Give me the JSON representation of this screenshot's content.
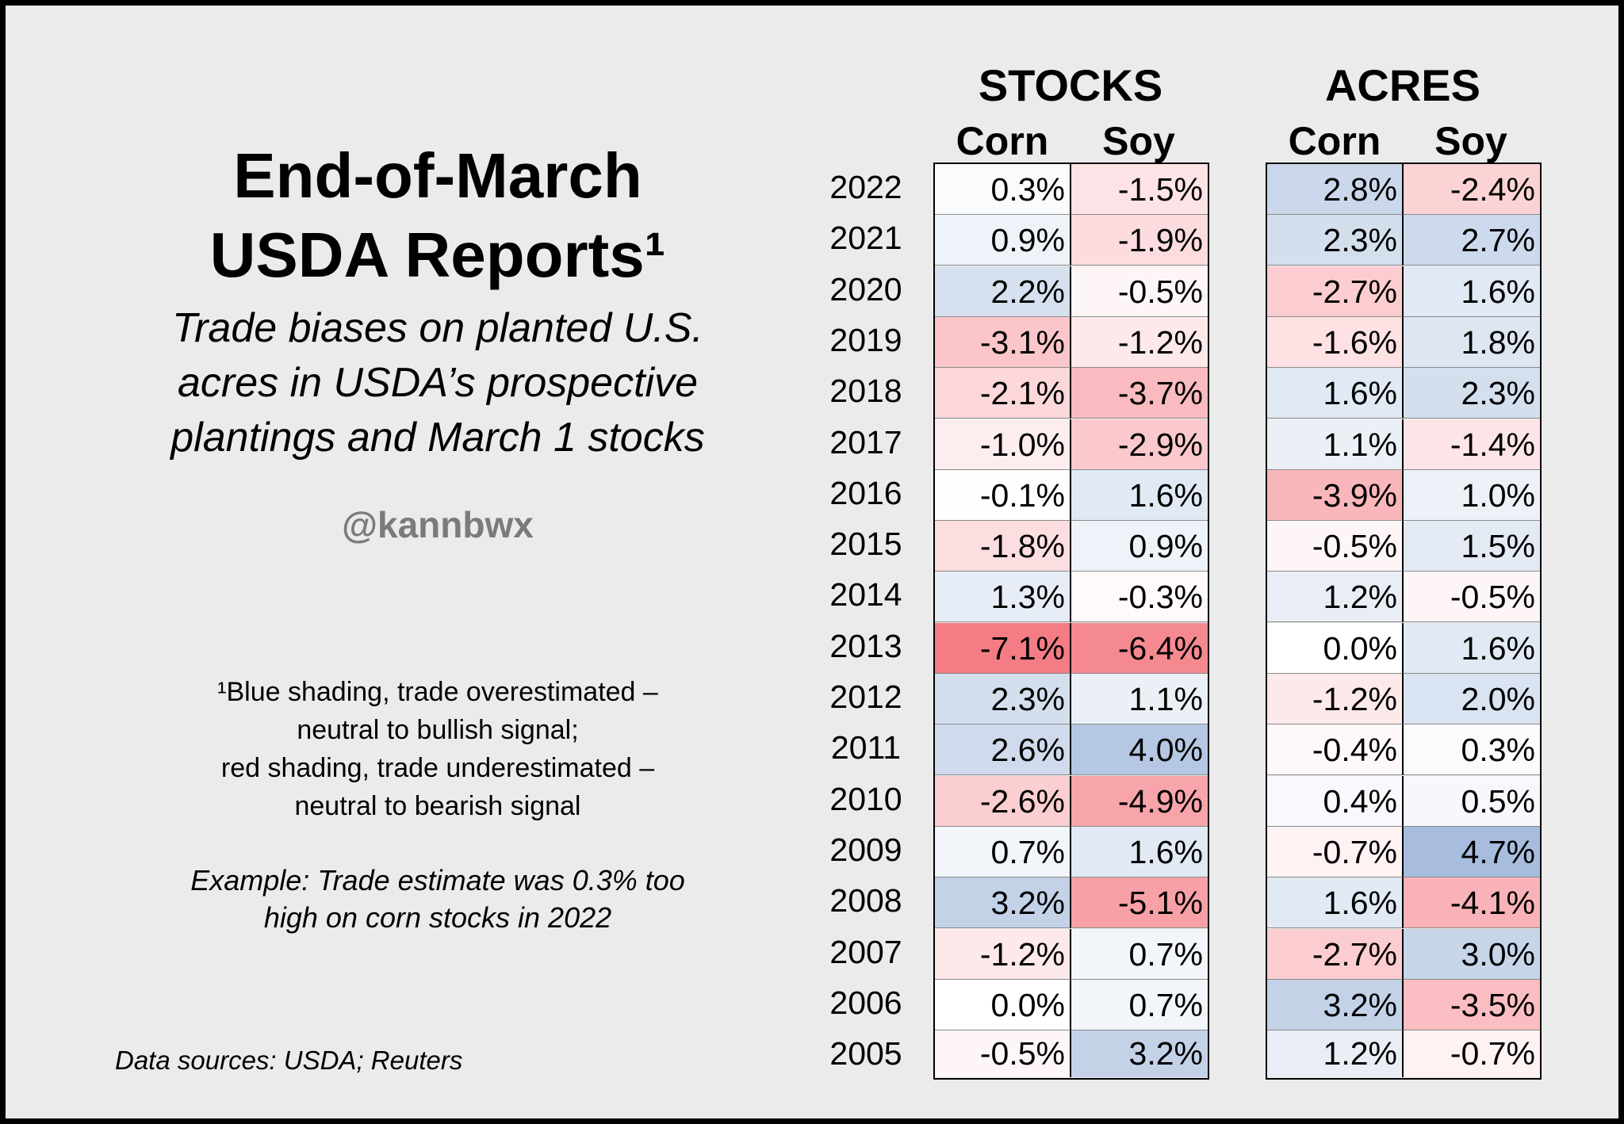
{
  "title_line1": "End-of-March",
  "title_line2": "USDA Reports¹",
  "subtitle_line1": "Trade biases on planted U.S.",
  "subtitle_line2": "acres in USDA’s prospective",
  "subtitle_line3": "plantings and March 1 stocks",
  "handle": "@kannbwx",
  "footnote_line1": "¹Blue shading, trade overestimated –",
  "footnote_line2": "neutral to bullish signal;",
  "footnote_line3": "red shading, trade underestimated –",
  "footnote_line4": "neutral to bearish signal",
  "example_line1": "Example: Trade estimate was 0.3% too",
  "example_line2": "high on corn stocks in 2022",
  "sources": "Data sources: USDA; Reuters",
  "colors": {
    "positive": "#7b9ccc",
    "negative": "#f47c84",
    "neutral": "#ffffff"
  },
  "chart_data": {
    "type": "table",
    "value_unit": "%",
    "color_scale_abs_max": 7.1,
    "years": [
      "2022",
      "2021",
      "2020",
      "2019",
      "2018",
      "2017",
      "2016",
      "2015",
      "2014",
      "2013",
      "2012",
      "2011",
      "2010",
      "2009",
      "2008",
      "2007",
      "2006",
      "2005"
    ],
    "groups": [
      {
        "name": "STOCKS",
        "columns": [
          {
            "name": "Corn",
            "values": [
              0.3,
              0.9,
              2.2,
              -3.1,
              -2.1,
              -1.0,
              -0.1,
              -1.8,
              1.3,
              -7.1,
              2.3,
              2.6,
              -2.6,
              0.7,
              3.2,
              -1.2,
              0.0,
              -0.5
            ]
          },
          {
            "name": "Soy",
            "values": [
              -1.5,
              -1.9,
              -0.5,
              -1.2,
              -3.7,
              -2.9,
              1.6,
              0.9,
              -0.3,
              -6.4,
              1.1,
              4.0,
              -4.9,
              1.6,
              -5.1,
              0.7,
              0.7,
              3.2
            ]
          }
        ]
      },
      {
        "name": "ACRES",
        "columns": [
          {
            "name": "Corn",
            "values": [
              2.8,
              2.3,
              -2.7,
              -1.6,
              1.6,
              1.1,
              -3.9,
              -0.5,
              1.2,
              0.0,
              -1.2,
              -0.4,
              0.4,
              -0.7,
              1.6,
              -2.7,
              3.2,
              1.2
            ]
          },
          {
            "name": "Soy",
            "values": [
              -2.4,
              2.7,
              1.6,
              1.8,
              2.3,
              -1.4,
              1.0,
              1.5,
              -0.5,
              1.6,
              2.0,
              0.3,
              0.5,
              4.7,
              -4.1,
              3.0,
              -3.5,
              -0.7
            ]
          }
        ]
      }
    ]
  }
}
